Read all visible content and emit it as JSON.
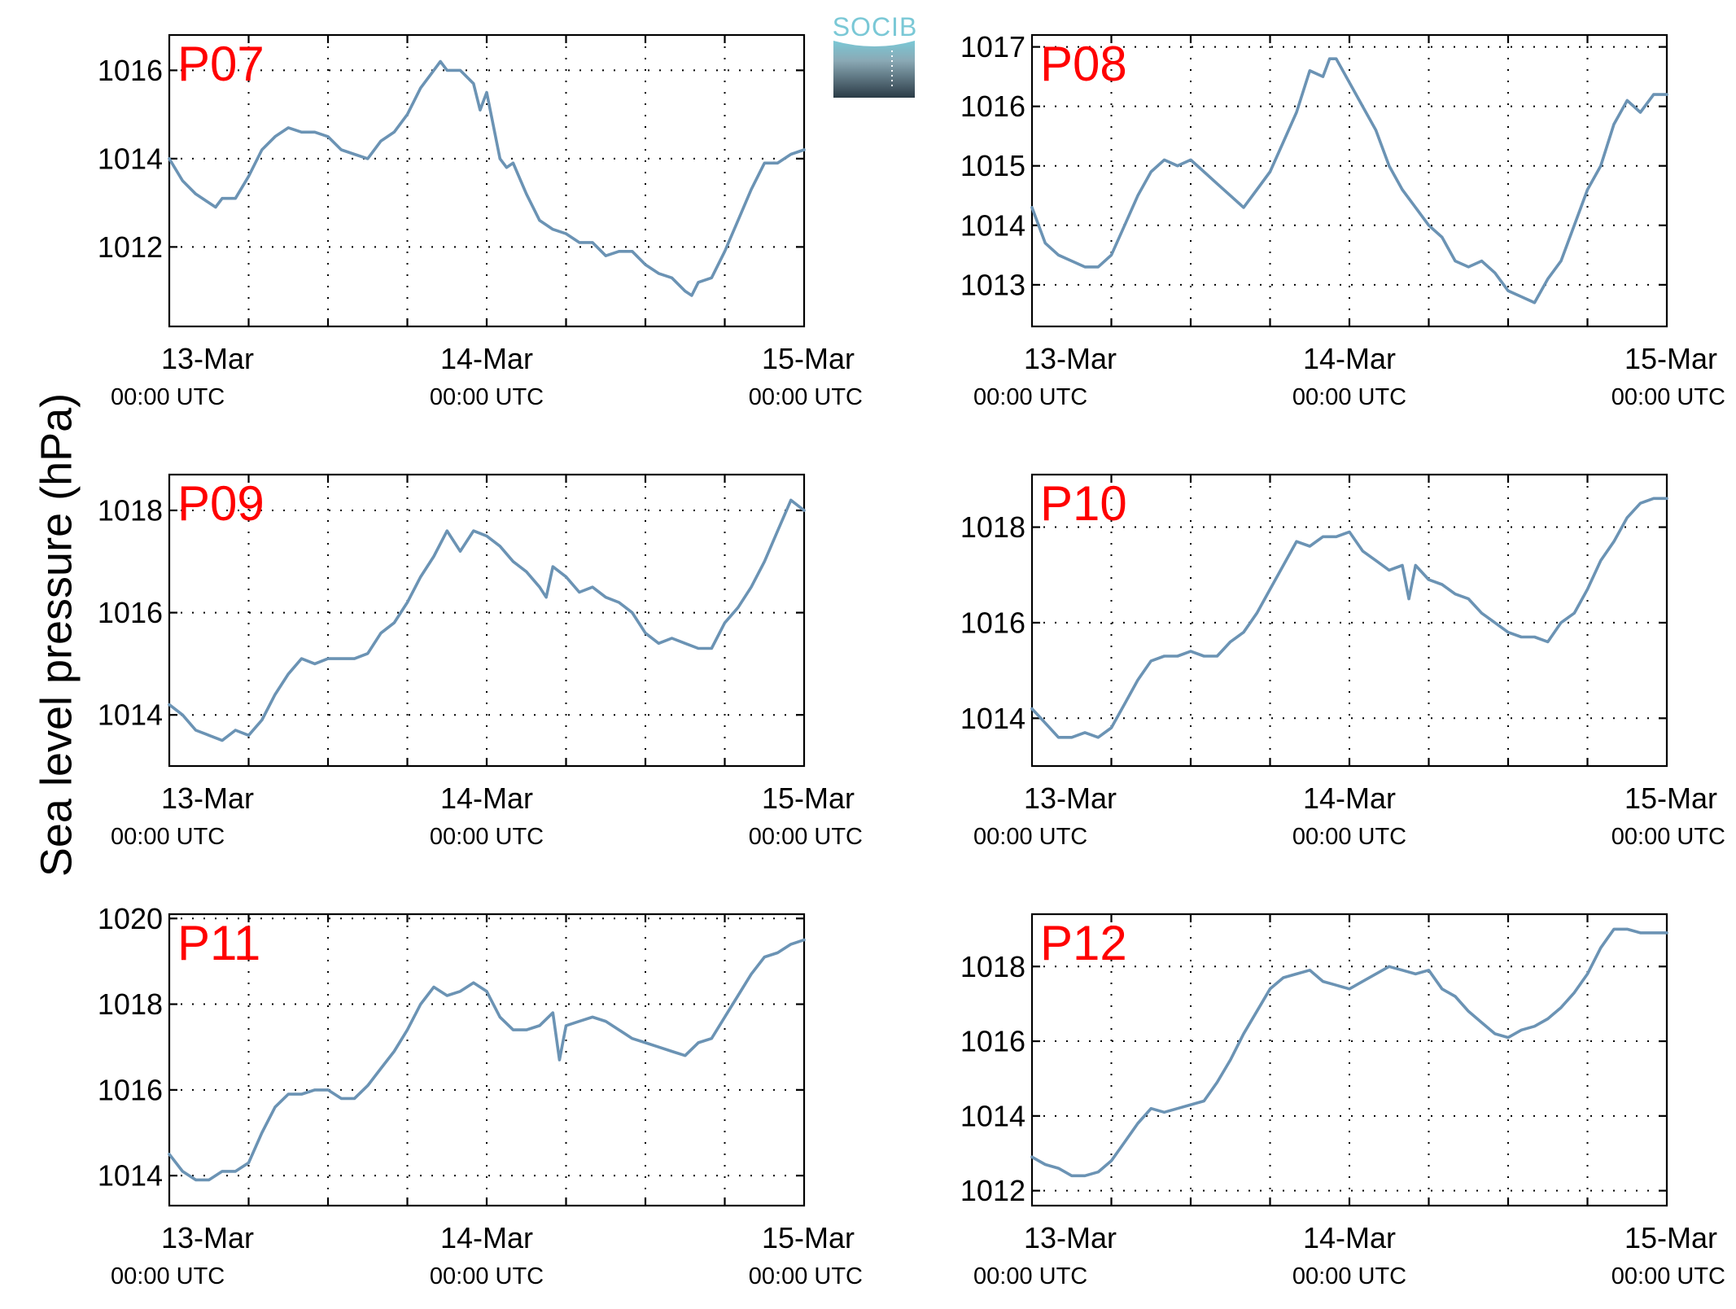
{
  "ylabel": "Sea level pressure (hPa)",
  "logo": {
    "text": "SOCIB"
  },
  "colors": {
    "series": "#6b93b4",
    "panel_title": "#ff0000",
    "logo_top": "#7ac8d6",
    "logo_bottom": "#2b3b46"
  },
  "x_ticks": [
    {
      "date": "13-Mar",
      "time": "00:00 UTC"
    },
    {
      "date": "14-Mar",
      "time": "00:00 UTC"
    },
    {
      "date": "15-Mar",
      "time": "00:00 UTC"
    }
  ],
  "chart_data": [
    {
      "type": "line",
      "title": "P07",
      "ylim": [
        1010.2,
        1016.8
      ],
      "yticks": [
        1012,
        1014,
        1016
      ],
      "xlim_hours": [
        0,
        48
      ],
      "xgrid_hours": [
        6,
        12,
        18,
        24,
        30,
        36,
        42
      ],
      "grid": true,
      "series": [
        {
          "x": [
            0,
            1,
            2,
            3,
            3.5,
            4,
            5,
            6,
            7,
            8,
            9,
            10,
            11,
            12,
            13,
            14,
            15,
            16,
            17,
            18,
            19,
            20,
            20.5,
            21,
            22,
            23,
            23.5,
            24,
            25,
            25.5,
            26,
            27,
            28,
            29,
            30,
            31,
            32,
            33,
            34,
            35,
            36,
            37,
            38,
            39,
            39.5,
            40,
            41,
            42,
            43,
            44,
            45,
            46,
            47,
            48
          ],
          "y": [
            1014.0,
            1013.5,
            1013.2,
            1013.0,
            1012.9,
            1013.1,
            1013.1,
            1013.6,
            1014.2,
            1014.5,
            1014.7,
            1014.6,
            1014.6,
            1014.5,
            1014.2,
            1014.1,
            1014.0,
            1014.4,
            1014.6,
            1015.0,
            1015.6,
            1016.0,
            1016.2,
            1016.0,
            1016.0,
            1015.7,
            1015.1,
            1015.5,
            1014.0,
            1013.8,
            1013.9,
            1013.2,
            1012.6,
            1012.4,
            1012.3,
            1012.1,
            1012.1,
            1011.8,
            1011.9,
            1011.9,
            1011.6,
            1011.4,
            1011.3,
            1011.0,
            1010.9,
            1011.2,
            1011.3,
            1011.9,
            1012.6,
            1013.3,
            1013.9,
            1013.9,
            1014.1,
            1014.2
          ]
        }
      ]
    },
    {
      "type": "line",
      "title": "P08",
      "ylim": [
        1012.3,
        1017.2
      ],
      "yticks": [
        1013,
        1014,
        1015,
        1016,
        1017
      ],
      "xlim_hours": [
        0,
        48
      ],
      "xgrid_hours": [
        6,
        12,
        18,
        24,
        30,
        36,
        42
      ],
      "grid": true,
      "series": [
        {
          "x": [
            0,
            1,
            2,
            3,
            4,
            5,
            6,
            7,
            8,
            9,
            10,
            11,
            12,
            13,
            14,
            15,
            16,
            17,
            18,
            19,
            20,
            21,
            22,
            22.5,
            23,
            24,
            25,
            26,
            27,
            28,
            29,
            30,
            31,
            32,
            33,
            34,
            35,
            36,
            37,
            38,
            39,
            40,
            41,
            42,
            43,
            44,
            45,
            46,
            47,
            48
          ],
          "y": [
            1014.3,
            1013.7,
            1013.5,
            1013.4,
            1013.3,
            1013.3,
            1013.5,
            1014.0,
            1014.5,
            1014.9,
            1015.1,
            1015.0,
            1015.1,
            1014.9,
            1014.7,
            1014.5,
            1014.3,
            1014.6,
            1014.9,
            1015.4,
            1015.9,
            1016.6,
            1016.5,
            1016.8,
            1016.8,
            1016.4,
            1016.0,
            1015.6,
            1015.0,
            1014.6,
            1014.3,
            1014.0,
            1013.8,
            1013.4,
            1013.3,
            1013.4,
            1013.2,
            1012.9,
            1012.8,
            1012.7,
            1013.1,
            1013.4,
            1014.0,
            1014.6,
            1015.0,
            1015.7,
            1016.1,
            1015.9,
            1016.2,
            1016.2
          ]
        }
      ]
    },
    {
      "type": "line",
      "title": "P09",
      "ylim": [
        1013.0,
        1018.7
      ],
      "yticks": [
        1014,
        1016,
        1018
      ],
      "xlim_hours": [
        0,
        48
      ],
      "xgrid_hours": [
        6,
        12,
        18,
        24,
        30,
        36,
        42
      ],
      "grid": true,
      "series": [
        {
          "x": [
            0,
            1,
            2,
            3,
            4,
            5,
            6,
            7,
            8,
            9,
            10,
            11,
            12,
            13,
            14,
            15,
            16,
            17,
            18,
            19,
            20,
            21,
            22,
            23,
            24,
            25,
            26,
            27,
            28,
            28.5,
            29,
            30,
            31,
            32,
            33,
            34,
            35,
            36,
            37,
            38,
            39,
            40,
            41,
            42,
            43,
            44,
            45,
            46,
            47,
            48
          ],
          "y": [
            1014.2,
            1014.0,
            1013.7,
            1013.6,
            1013.5,
            1013.7,
            1013.6,
            1013.9,
            1014.4,
            1014.8,
            1015.1,
            1015.0,
            1015.1,
            1015.1,
            1015.1,
            1015.2,
            1015.6,
            1015.8,
            1016.2,
            1016.7,
            1017.1,
            1017.6,
            1017.2,
            1017.6,
            1017.5,
            1017.3,
            1017.0,
            1016.8,
            1016.5,
            1016.3,
            1016.9,
            1016.7,
            1016.4,
            1016.5,
            1016.3,
            1016.2,
            1016.0,
            1015.6,
            1015.4,
            1015.5,
            1015.4,
            1015.3,
            1015.3,
            1015.8,
            1016.1,
            1016.5,
            1017.0,
            1017.6,
            1018.2,
            1018.0
          ]
        }
      ]
    },
    {
      "type": "line",
      "title": "P10",
      "ylim": [
        1013.0,
        1019.1
      ],
      "yticks": [
        1014,
        1016,
        1018
      ],
      "xlim_hours": [
        0,
        48
      ],
      "xgrid_hours": [
        6,
        12,
        18,
        24,
        30,
        36,
        42
      ],
      "grid": true,
      "series": [
        {
          "x": [
            0,
            1,
            2,
            3,
            4,
            5,
            6,
            7,
            8,
            9,
            10,
            11,
            12,
            13,
            14,
            15,
            16,
            17,
            18,
            19,
            20,
            21,
            22,
            23,
            24,
            25,
            26,
            27,
            28,
            28.5,
            29,
            30,
            31,
            32,
            33,
            34,
            35,
            36,
            37,
            38,
            39,
            40,
            41,
            42,
            43,
            44,
            45,
            46,
            47,
            48
          ],
          "y": [
            1014.2,
            1013.9,
            1013.6,
            1013.6,
            1013.7,
            1013.6,
            1013.8,
            1014.3,
            1014.8,
            1015.2,
            1015.3,
            1015.3,
            1015.4,
            1015.3,
            1015.3,
            1015.6,
            1015.8,
            1016.2,
            1016.7,
            1017.2,
            1017.7,
            1017.6,
            1017.8,
            1017.8,
            1017.9,
            1017.5,
            1017.3,
            1017.1,
            1017.2,
            1016.5,
            1017.2,
            1016.9,
            1016.8,
            1016.6,
            1016.5,
            1016.2,
            1016.0,
            1015.8,
            1015.7,
            1015.7,
            1015.6,
            1016.0,
            1016.2,
            1016.7,
            1017.3,
            1017.7,
            1018.2,
            1018.5,
            1018.6,
            1018.6
          ]
        }
      ]
    },
    {
      "type": "line",
      "title": "P11",
      "ylim": [
        1013.3,
        1020.1
      ],
      "yticks": [
        1014,
        1016,
        1018,
        1020
      ],
      "xlim_hours": [
        0,
        48
      ],
      "xgrid_hours": [
        6,
        12,
        18,
        24,
        30,
        36,
        42
      ],
      "grid": true,
      "series": [
        {
          "x": [
            0,
            1,
            2,
            3,
            4,
            5,
            6,
            7,
            8,
            9,
            10,
            11,
            12,
            13,
            14,
            15,
            16,
            17,
            18,
            19,
            20,
            21,
            22,
            23,
            24,
            25,
            26,
            27,
            28,
            29,
            29.5,
            30,
            31,
            32,
            33,
            34,
            35,
            36,
            37,
            38,
            39,
            40,
            41,
            42,
            43,
            44,
            45,
            46,
            47,
            48
          ],
          "y": [
            1014.5,
            1014.1,
            1013.9,
            1013.9,
            1014.1,
            1014.1,
            1014.3,
            1015.0,
            1015.6,
            1015.9,
            1015.9,
            1016.0,
            1016.0,
            1015.8,
            1015.8,
            1016.1,
            1016.5,
            1016.9,
            1017.4,
            1018.0,
            1018.4,
            1018.2,
            1018.3,
            1018.5,
            1018.3,
            1017.7,
            1017.4,
            1017.4,
            1017.5,
            1017.8,
            1016.7,
            1017.5,
            1017.6,
            1017.7,
            1017.6,
            1017.4,
            1017.2,
            1017.1,
            1017.0,
            1016.9,
            1016.8,
            1017.1,
            1017.2,
            1017.7,
            1018.2,
            1018.7,
            1019.1,
            1019.2,
            1019.4,
            1019.5
          ]
        }
      ]
    },
    {
      "type": "line",
      "title": "P12",
      "ylim": [
        1011.6,
        1019.4
      ],
      "yticks": [
        1012,
        1014,
        1016,
        1018
      ],
      "xlim_hours": [
        0,
        48
      ],
      "xgrid_hours": [
        6,
        12,
        18,
        24,
        30,
        36,
        42
      ],
      "grid": true,
      "series": [
        {
          "x": [
            0,
            1,
            2,
            3,
            4,
            5,
            6,
            7,
            8,
            9,
            10,
            11,
            12,
            13,
            14,
            15,
            16,
            17,
            18,
            19,
            20,
            21,
            22,
            23,
            24,
            25,
            26,
            27,
            28,
            29,
            30,
            31,
            32,
            33,
            34,
            35,
            36,
            37,
            38,
            39,
            40,
            41,
            42,
            43,
            44,
            45,
            46,
            47,
            48
          ],
          "y": [
            1012.9,
            1012.7,
            1012.6,
            1012.4,
            1012.4,
            1012.5,
            1012.8,
            1013.3,
            1013.8,
            1014.2,
            1014.1,
            1014.2,
            1014.3,
            1014.4,
            1014.9,
            1015.5,
            1016.2,
            1016.8,
            1017.4,
            1017.7,
            1017.8,
            1017.9,
            1017.6,
            1017.5,
            1017.4,
            1017.6,
            1017.8,
            1018.0,
            1017.9,
            1017.8,
            1017.9,
            1017.4,
            1017.2,
            1016.8,
            1016.5,
            1016.2,
            1016.1,
            1016.3,
            1016.4,
            1016.6,
            1016.9,
            1017.3,
            1017.8,
            1018.5,
            1019.0,
            1019.0,
            1018.9,
            1018.9,
            1018.9
          ]
        }
      ]
    }
  ]
}
